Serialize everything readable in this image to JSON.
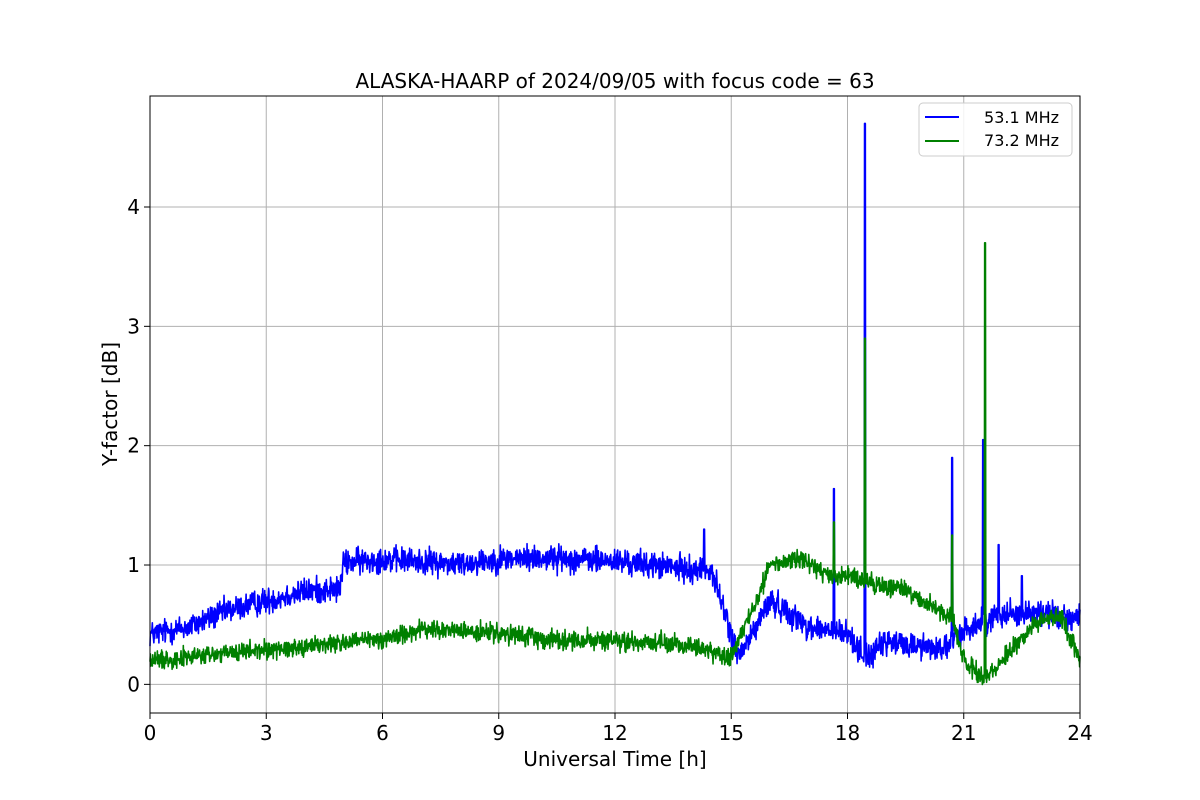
{
  "chart_data": {
    "type": "line",
    "title": "ALASKA-HAARP of 2024/09/05 with focus code = 63",
    "xlabel": "Universal Time [h]",
    "ylabel": "Y-factor [dB]",
    "xlim": [
      0,
      24
    ],
    "ylim": [
      -0.24,
      4.93
    ],
    "xticks": [
      0,
      3,
      6,
      9,
      12,
      15,
      18,
      21,
      24
    ],
    "xtick_labels": [
      "0",
      "3",
      "6",
      "9",
      "12",
      "15",
      "18",
      "21",
      "24"
    ],
    "yticks": [
      0,
      1,
      2,
      3,
      4
    ],
    "ytick_labels": [
      "0",
      "1",
      "2",
      "3",
      "4"
    ],
    "grid": true,
    "legend_position": "top-right",
    "series": [
      {
        "name": "53.1 MHz",
        "color": "#0000ff",
        "noise": 0.09,
        "x": [
          0,
          1,
          2,
          3,
          4,
          4.9,
          5.0,
          6,
          7,
          8,
          9,
          10,
          11,
          12,
          13,
          14,
          14.5,
          15,
          15.2,
          16,
          16.5,
          17,
          18,
          18.5,
          19,
          20,
          20.5,
          21,
          22,
          23,
          24
        ],
        "y": [
          0.42,
          0.48,
          0.62,
          0.7,
          0.78,
          0.8,
          1.02,
          1.05,
          1.03,
          1.01,
          1.05,
          1.06,
          1.05,
          1.03,
          1.0,
          0.96,
          0.95,
          0.42,
          0.22,
          0.7,
          0.6,
          0.48,
          0.42,
          0.22,
          0.35,
          0.32,
          0.3,
          0.45,
          0.6,
          0.6,
          0.55
        ],
        "spikes": [
          [
            14.3,
            1.3
          ],
          [
            17.65,
            1.64
          ],
          [
            18.45,
            4.7
          ],
          [
            20.7,
            1.9
          ],
          [
            21.5,
            2.05
          ],
          [
            21.9,
            1.17
          ],
          [
            22.5,
            0.91
          ]
        ]
      },
      {
        "name": "73.2 MHz",
        "color": "#008000",
        "noise": 0.065,
        "x": [
          0,
          2,
          4,
          6,
          7,
          8,
          9,
          10,
          11,
          12,
          13,
          14,
          14.7,
          15,
          15.5,
          16,
          16.8,
          17.5,
          18,
          18.5,
          19,
          19.5,
          20,
          20.7,
          21,
          21.5,
          22,
          22.5,
          23,
          23.5,
          24
        ],
        "y": [
          0.2,
          0.26,
          0.32,
          0.38,
          0.46,
          0.45,
          0.42,
          0.39,
          0.37,
          0.36,
          0.35,
          0.32,
          0.25,
          0.22,
          0.6,
          1.0,
          1.06,
          0.9,
          0.9,
          0.86,
          0.82,
          0.8,
          0.68,
          0.55,
          0.22,
          0.05,
          0.2,
          0.4,
          0.55,
          0.58,
          0.2
        ],
        "spikes": [
          [
            17.65,
            1.36
          ],
          [
            18.45,
            2.9
          ],
          [
            20.7,
            1.25
          ],
          [
            21.55,
            3.7
          ]
        ]
      }
    ]
  }
}
